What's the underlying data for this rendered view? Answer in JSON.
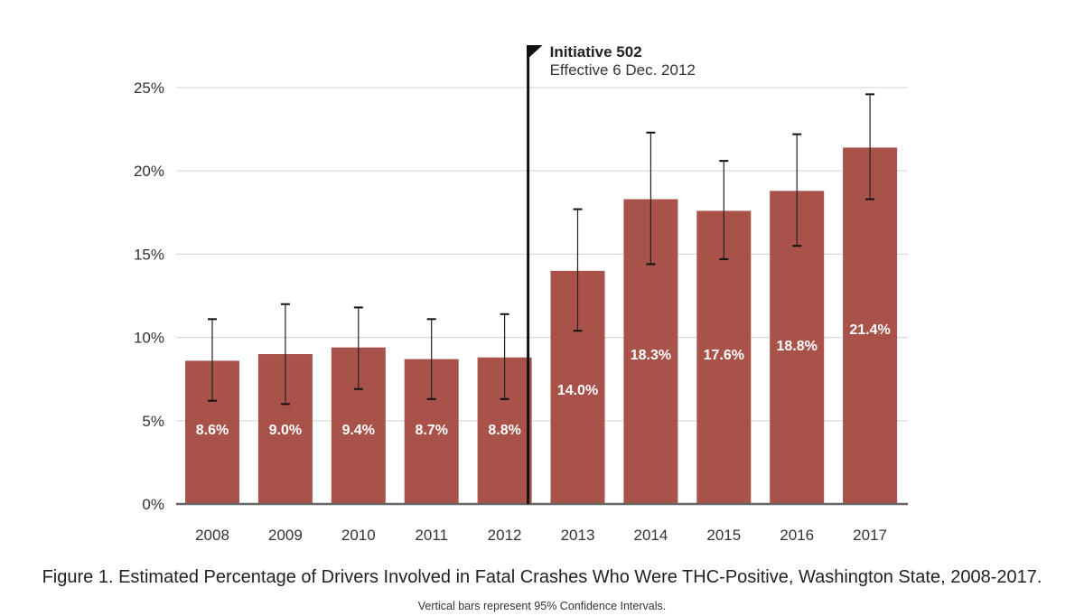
{
  "chart_data": {
    "type": "bar",
    "title": "Figure 1. Estimated Percentage of Drivers Involved in Fatal Crashes Who Were THC-Positive, Washington State, 2008-2017.",
    "subtitle": "Vertical bars represent 95% Confidence Intervals.",
    "xlabel": "",
    "ylabel": "",
    "categories": [
      "2008",
      "2009",
      "2010",
      "2011",
      "2012",
      "2013",
      "2014",
      "2015",
      "2016",
      "2017"
    ],
    "values": [
      8.6,
      9.0,
      9.4,
      8.7,
      8.8,
      14.0,
      18.3,
      17.6,
      18.8,
      21.4
    ],
    "data_labels": [
      "8.6%",
      "9.0%",
      "9.4%",
      "8.7%",
      "8.8%",
      "14.0%",
      "18.3%",
      "17.6%",
      "18.8%",
      "21.4%"
    ],
    "ci_lower": [
      6.2,
      6.0,
      6.9,
      6.3,
      6.3,
      10.4,
      14.4,
      14.7,
      15.5,
      18.3
    ],
    "ci_upper": [
      11.1,
      12.0,
      11.8,
      11.1,
      11.4,
      17.7,
      22.3,
      20.6,
      22.2,
      24.6
    ],
    "ylim": [
      0,
      25
    ],
    "yticks": [
      0,
      5,
      10,
      15,
      20,
      25
    ],
    "ytick_labels": [
      "0%",
      "5%",
      "10%",
      "15%",
      "20%",
      "25%"
    ],
    "grid": true,
    "bar_color": "#A9524A",
    "annotation": {
      "title": "Initiative 502",
      "subtitle": "Effective 6 Dec. 2012",
      "position_after_category": "2012",
      "icon": "flag-icon"
    }
  }
}
